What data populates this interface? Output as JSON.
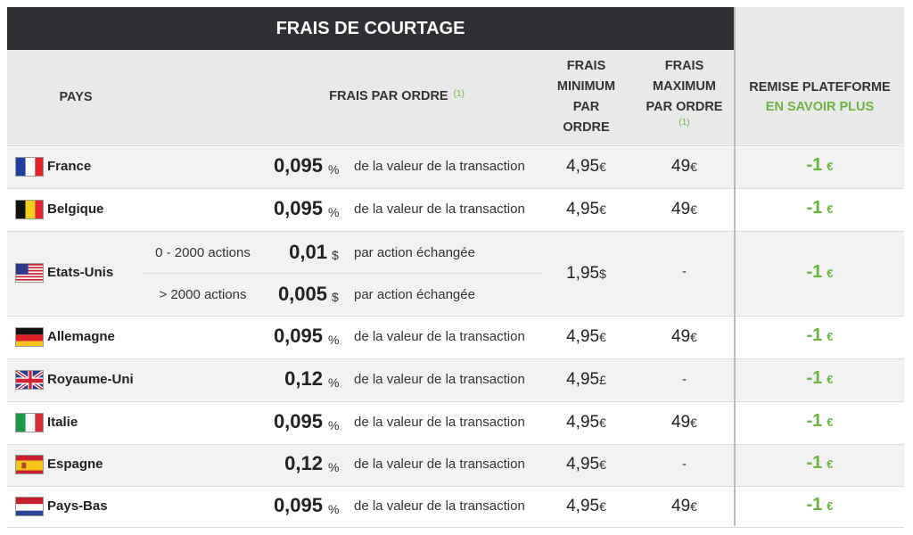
{
  "header": {
    "title": "FRAIS DE COURTAGE",
    "col_country": "PAYS",
    "col_fee": "FRAIS PAR ORDRE",
    "col_fee_note": "(1)",
    "col_min_lines": [
      "FRAIS",
      "MINIMUM",
      "PAR",
      "ORDRE"
    ],
    "col_max_lines": [
      "FRAIS",
      "MAXIMUM",
      "PAR ORDRE"
    ],
    "col_max_note": "(1)",
    "col_remise": "REMISE PLATEFORME",
    "col_remise_link": "EN SAVOIR PLUS"
  },
  "rows": [
    {
      "country": "France",
      "flag": "fr",
      "fee": "0,095",
      "fee_unit": "%",
      "desc": "de la valeur de la transaction",
      "min": "4,95",
      "min_cur": "€",
      "max": "49",
      "max_cur": "€",
      "remise": "-1",
      "remise_cur": "€"
    },
    {
      "country": "Belgique",
      "flag": "be",
      "fee": "0,095",
      "fee_unit": "%",
      "desc": "de la valeur de la transaction",
      "min": "4,95",
      "min_cur": "€",
      "max": "49",
      "max_cur": "€",
      "remise": "-1",
      "remise_cur": "€"
    },
    {
      "country": "Etats-Unis",
      "flag": "us",
      "tiers": [
        {
          "range": "0 - 2000 actions",
          "fee": "0,01",
          "fee_unit": "$",
          "desc": "par action échangée"
        },
        {
          "range": "> 2000 actions",
          "fee": "0,005",
          "fee_unit": "$",
          "desc": "par action échangée"
        }
      ],
      "min": "1,95",
      "min_cur": "$",
      "max": "-",
      "remise": "-1",
      "remise_cur": "€"
    },
    {
      "country": "Allemagne",
      "flag": "de",
      "fee": "0,095",
      "fee_unit": "%",
      "desc": "de la valeur de la transaction",
      "min": "4,95",
      "min_cur": "€",
      "max": "49",
      "max_cur": "€",
      "remise": "-1",
      "remise_cur": "€"
    },
    {
      "country": "Royaume-Uni",
      "flag": "gb",
      "fee": "0,12",
      "fee_unit": "%",
      "desc": "de la valeur de la transaction",
      "min": "4,95",
      "min_cur": "£",
      "max": "-",
      "max_cur": "",
      "remise": "-1",
      "remise_cur": "€"
    },
    {
      "country": "Italie",
      "flag": "it",
      "fee": "0,095",
      "fee_unit": "%",
      "desc": "de la valeur de la transaction",
      "min": "4,95",
      "min_cur": "€",
      "max": "49",
      "max_cur": "€",
      "remise": "-1",
      "remise_cur": "€"
    },
    {
      "country": "Espagne",
      "flag": "es",
      "fee": "0,12",
      "fee_unit": "%",
      "desc": "de la valeur de la transaction",
      "min": "4,95",
      "min_cur": "€",
      "max": "-",
      "max_cur": "",
      "remise": "-1",
      "remise_cur": "€"
    },
    {
      "country": "Pays-Bas",
      "flag": "nl",
      "fee": "0,095",
      "fee_unit": "%",
      "desc": "de la valeur de la transaction",
      "min": "4,95",
      "min_cur": "€",
      "max": "49",
      "max_cur": "€",
      "remise": "-1",
      "remise_cur": "€"
    }
  ],
  "colors": {
    "accent_green": "#6cb33f",
    "header_dark": "#2e3033",
    "row_alt": "#f2f2f2"
  }
}
